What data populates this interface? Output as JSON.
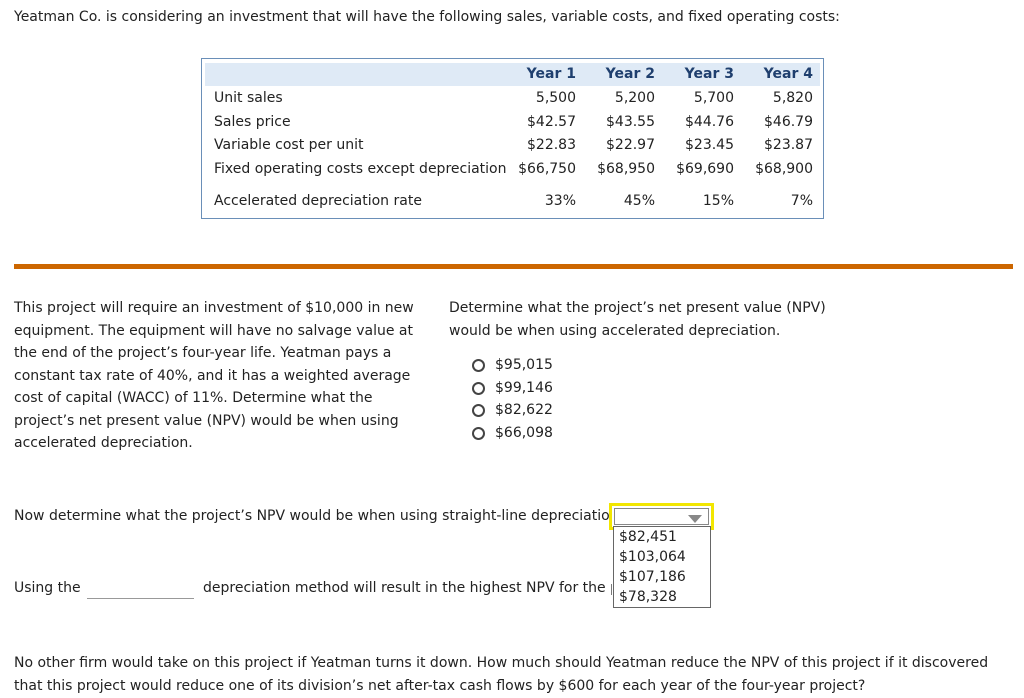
{
  "intro_text": "Yeatman Co. is considering an investment that will have the following sales, variable costs, and fixed operating costs:",
  "table": {
    "years": [
      "Year 1",
      "Year 2",
      "Year 3",
      "Year 4"
    ],
    "rows": [
      {
        "label": "Unit sales",
        "values": [
          "5,500",
          "5,200",
          "5,700",
          "5,820"
        ]
      },
      {
        "label": "Sales price",
        "values": [
          "$42.57",
          "$43.55",
          "$44.76",
          "$46.79"
        ]
      },
      {
        "label": "Variable cost per unit",
        "values": [
          "$22.83",
          "$22.97",
          "$23.45",
          "$23.87"
        ]
      },
      {
        "label": "Fixed operating costs except depreciation",
        "values": [
          "$66,750",
          "$68,950",
          "$69,690",
          "$68,900"
        ]
      },
      {
        "label": "Accelerated depreciation rate",
        "values": [
          "33%",
          "45%",
          "15%",
          "7%"
        ]
      }
    ]
  },
  "colors": {
    "divider": "#cc6600",
    "header_band": "#dfeaf6",
    "dropdown_highlight": "#f2e600"
  },
  "left_paragraph": "This project will require an investment of $10,000 in new equipment. The equipment will have no salvage value at the end of the project’s four-year life. Yeatman pays a constant tax rate of 40%, and it has a weighted average cost of capital (WACC) of 11%. Determine what the project’s net present value (NPV) would be when using accelerated depreciation.",
  "question1": {
    "text": "Determine what the project’s net present value (NPV) would be when using accelerated depreciation.",
    "options": [
      "$95,015",
      "$99,146",
      "$82,622",
      "$66,098"
    ]
  },
  "question2": {
    "text": "Now determine what the project’s NPV would be when using straight-line depreciation.",
    "dropdown_value": "",
    "dropdown_options": [
      "$82,451",
      "$103,064",
      "$107,186",
      "$78,328"
    ]
  },
  "question3": {
    "prefix": "Using the",
    "suffix": "depreciation method will result in the highest NPV for the pr"
  },
  "question4": "No other firm would take on this project if Yeatman turns it down. How much should Yeatman reduce the NPV of this project if it discovered that this project would reduce one of its division’s net after-tax cash flows by $600 for each year of the four-year project?"
}
